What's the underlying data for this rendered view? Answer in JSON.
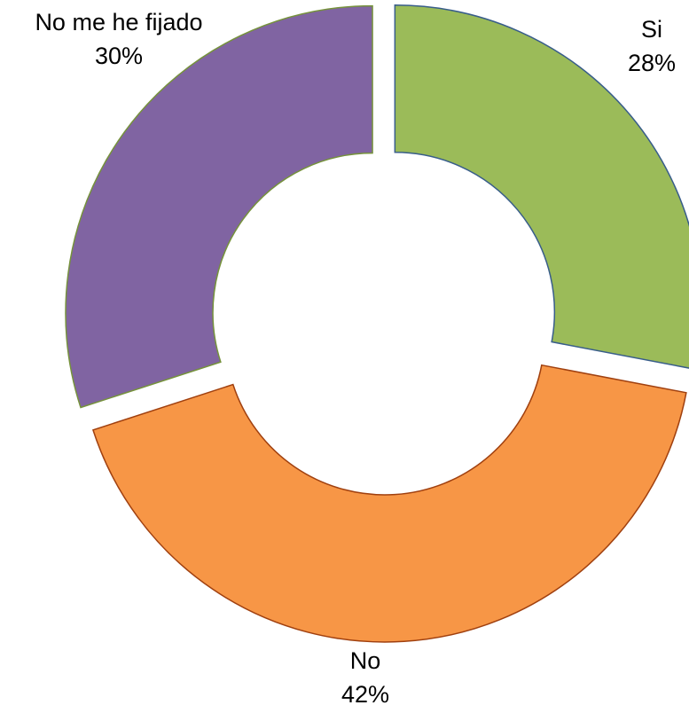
{
  "chart_data": {
    "type": "pie",
    "donut": true,
    "title": "",
    "slices": [
      {
        "label": "Si",
        "value": 28,
        "display": "28%",
        "color": "#9BBB59",
        "border": "#385D8A"
      },
      {
        "label": "No",
        "value": 42,
        "display": "42%",
        "color": "#F79646",
        "border": "#A0400F"
      },
      {
        "label": "No me he fijado",
        "value": 30,
        "display": "30%",
        "color": "#8064A2",
        "border": "#76923C"
      }
    ],
    "legend": "none",
    "data_labels": "outside"
  }
}
